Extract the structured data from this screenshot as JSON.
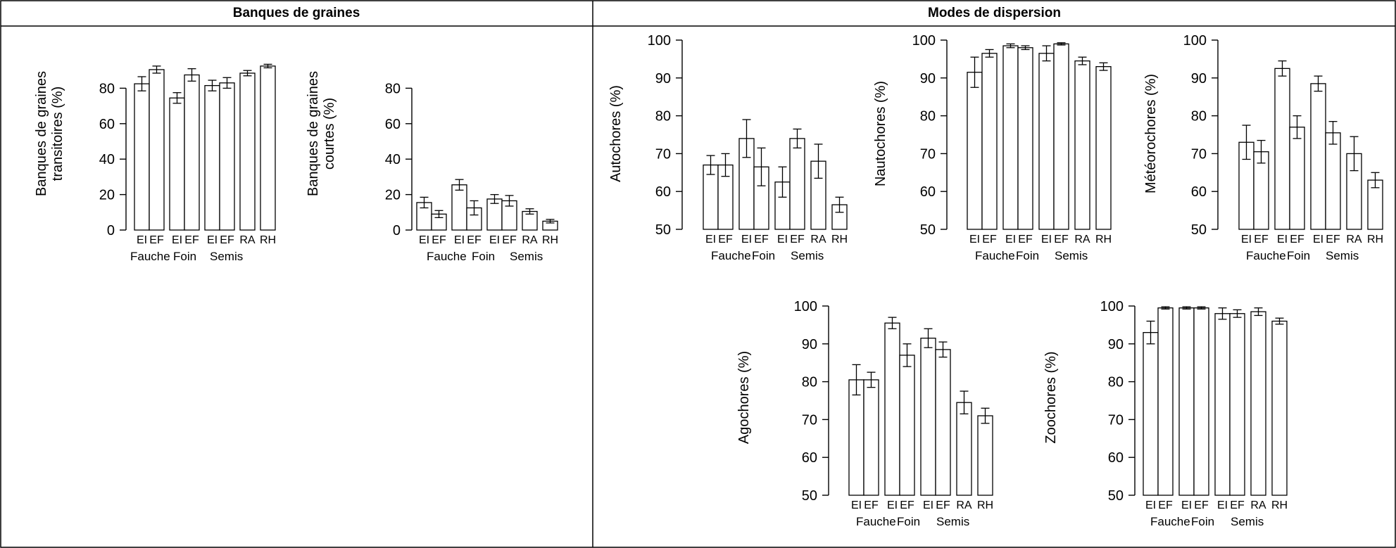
{
  "headers": {
    "left": "Banques de graines",
    "right": "Modes de dispersion"
  },
  "chart_data": [
    {
      "type": "bar",
      "ylabel": "Banques de graines transitoires (%)",
      "ylim": [
        0,
        100
      ],
      "yticks": [
        0,
        20,
        40,
        60,
        80
      ],
      "categories": [
        "EI",
        "EF",
        "EI",
        "EF",
        "EI",
        "EF",
        "RA",
        "RH"
      ],
      "groups": [
        "Fauche",
        "Foin",
        "Semis"
      ],
      "values": [
        82.5,
        90.5,
        74.5,
        87.5,
        81.5,
        83.0,
        88.5,
        92.5
      ],
      "errors": [
        4.0,
        2.0,
        3.0,
        3.5,
        3.0,
        3.0,
        1.5,
        1.0
      ]
    },
    {
      "type": "bar",
      "ylabel": "Banques de graines courtes (%)",
      "ylim": [
        0,
        100
      ],
      "yticks": [
        0,
        20,
        40,
        60,
        80
      ],
      "categories": [
        "EI",
        "EF",
        "EI",
        "EF",
        "EI",
        "EF",
        "RA",
        "RH"
      ],
      "groups": [
        "Fauche",
        "Foin",
        "Semis"
      ],
      "values": [
        15.5,
        9.0,
        25.5,
        12.5,
        17.5,
        16.5,
        10.5,
        5.0
      ],
      "errors": [
        3.0,
        2.0,
        3.0,
        4.0,
        2.5,
        3.0,
        1.5,
        1.0
      ]
    },
    {
      "type": "bar",
      "ylabel": "Autochores (%)",
      "ylim": [
        50,
        100
      ],
      "yticks": [
        50,
        60,
        70,
        80,
        90,
        100
      ],
      "categories": [
        "EI",
        "EF",
        "EI",
        "EF",
        "EI",
        "EF",
        "RA",
        "RH"
      ],
      "groups": [
        "Fauche",
        "Foin",
        "Semis"
      ],
      "values": [
        67.0,
        67.0,
        74.0,
        66.5,
        62.5,
        74.0,
        68.0,
        56.5
      ],
      "errors": [
        2.5,
        3.0,
        5.0,
        5.0,
        4.0,
        2.5,
        4.5,
        2.0
      ]
    },
    {
      "type": "bar",
      "ylabel": "Nautochores (%)",
      "ylim": [
        50,
        100
      ],
      "yticks": [
        50,
        60,
        70,
        80,
        90,
        100
      ],
      "categories": [
        "EI",
        "EF",
        "EI",
        "EF",
        "EI",
        "EF",
        "RA",
        "RH"
      ],
      "groups": [
        "Fauche",
        "Foin",
        "Semis"
      ],
      "values": [
        91.5,
        96.5,
        98.5,
        98.0,
        96.5,
        99.0,
        94.5,
        93.0
      ],
      "errors": [
        4.0,
        1.0,
        0.5,
        0.5,
        2.0,
        0.3,
        1.0,
        1.0
      ]
    },
    {
      "type": "bar",
      "ylabel": "Météorochores (%)",
      "ylim": [
        50,
        100
      ],
      "yticks": [
        50,
        60,
        70,
        80,
        90,
        100
      ],
      "categories": [
        "EI",
        "EF",
        "EI",
        "EF",
        "EI",
        "EF",
        "RA",
        "RH"
      ],
      "groups": [
        "Fauche",
        "Foin",
        "Semis"
      ],
      "values": [
        73.0,
        70.5,
        92.5,
        77.0,
        88.5,
        75.5,
        70.0,
        63.0
      ],
      "errors": [
        4.5,
        3.0,
        2.0,
        3.0,
        2.0,
        3.0,
        4.5,
        2.0
      ]
    },
    {
      "type": "bar",
      "ylabel": "Agochores (%)",
      "ylim": [
        50,
        100
      ],
      "yticks": [
        50,
        60,
        70,
        80,
        90,
        100
      ],
      "categories": [
        "EI",
        "EF",
        "EI",
        "EF",
        "EI",
        "EF",
        "RA",
        "RH"
      ],
      "groups": [
        "Fauche",
        "Foin",
        "Semis"
      ],
      "values": [
        80.5,
        80.5,
        95.5,
        87.0,
        91.5,
        88.5,
        74.5,
        71.0
      ],
      "errors": [
        4.0,
        2.0,
        1.5,
        3.0,
        2.5,
        2.0,
        3.0,
        2.0
      ]
    },
    {
      "type": "bar",
      "ylabel": "Zoochores (%)",
      "ylim": [
        50,
        100
      ],
      "yticks": [
        50,
        60,
        70,
        80,
        90,
        100
      ],
      "categories": [
        "EI",
        "EF",
        "EI",
        "EF",
        "EI",
        "EF",
        "RA",
        "RH"
      ],
      "groups": [
        "Fauche",
        "Foin",
        "Semis"
      ],
      "values": [
        93.0,
        99.5,
        99.5,
        99.5,
        98.0,
        98.0,
        98.5,
        96.0
      ],
      "errors": [
        3.0,
        0.3,
        0.3,
        0.3,
        1.5,
        1.0,
        1.0,
        0.8
      ]
    }
  ]
}
